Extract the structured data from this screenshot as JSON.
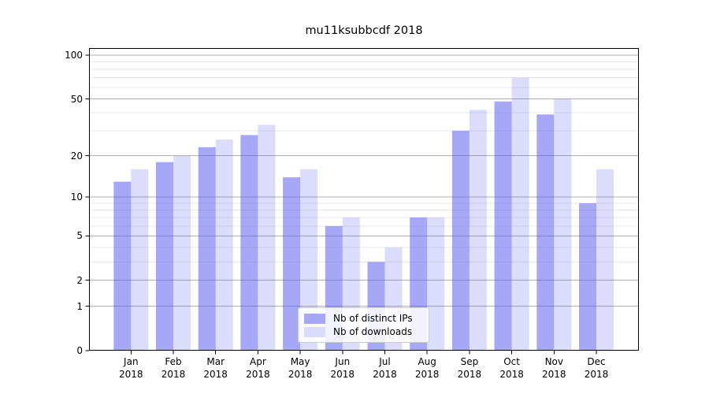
{
  "figure": {
    "background": "#ffffff"
  },
  "chart_data": {
    "type": "bar",
    "title": "mu11ksubbcdf 2018",
    "categories": [
      "Jan",
      "Feb",
      "Mar",
      "Apr",
      "May",
      "Jun",
      "Jul",
      "Aug",
      "Sep",
      "Oct",
      "Nov",
      "Dec"
    ],
    "x_tick_year": "2018",
    "series": [
      {
        "name": "Nb of distinct IPs",
        "color": "#a7a7f7",
        "fill_rgba": "rgba(80,80,242,0.5)",
        "values": [
          13,
          18,
          23,
          28,
          14,
          6,
          3,
          7,
          30,
          48,
          39,
          9
        ]
      },
      {
        "name": "Nb of downloads",
        "color": "#dbdbfb",
        "fill_rgba": "rgba(80,80,242,0.2)",
        "values": [
          16,
          20,
          26,
          33,
          16,
          7,
          4,
          7,
          42,
          70,
          50,
          16
        ]
      }
    ],
    "y_scale": "log1p",
    "y_major_ticks": [
      0,
      1,
      2,
      5,
      10,
      20,
      50,
      100
    ],
    "y_minor_ticks": [
      3,
      4,
      6,
      7,
      8,
      9,
      30,
      40,
      60,
      70,
      80,
      90
    ],
    "ylim": [
      0,
      112
    ],
    "grid": {
      "on": true,
      "major_color": "#b0b0b0",
      "minor_color": "#e8e8e8"
    },
    "spine_color": "#000000",
    "legend_position": "lower center"
  }
}
